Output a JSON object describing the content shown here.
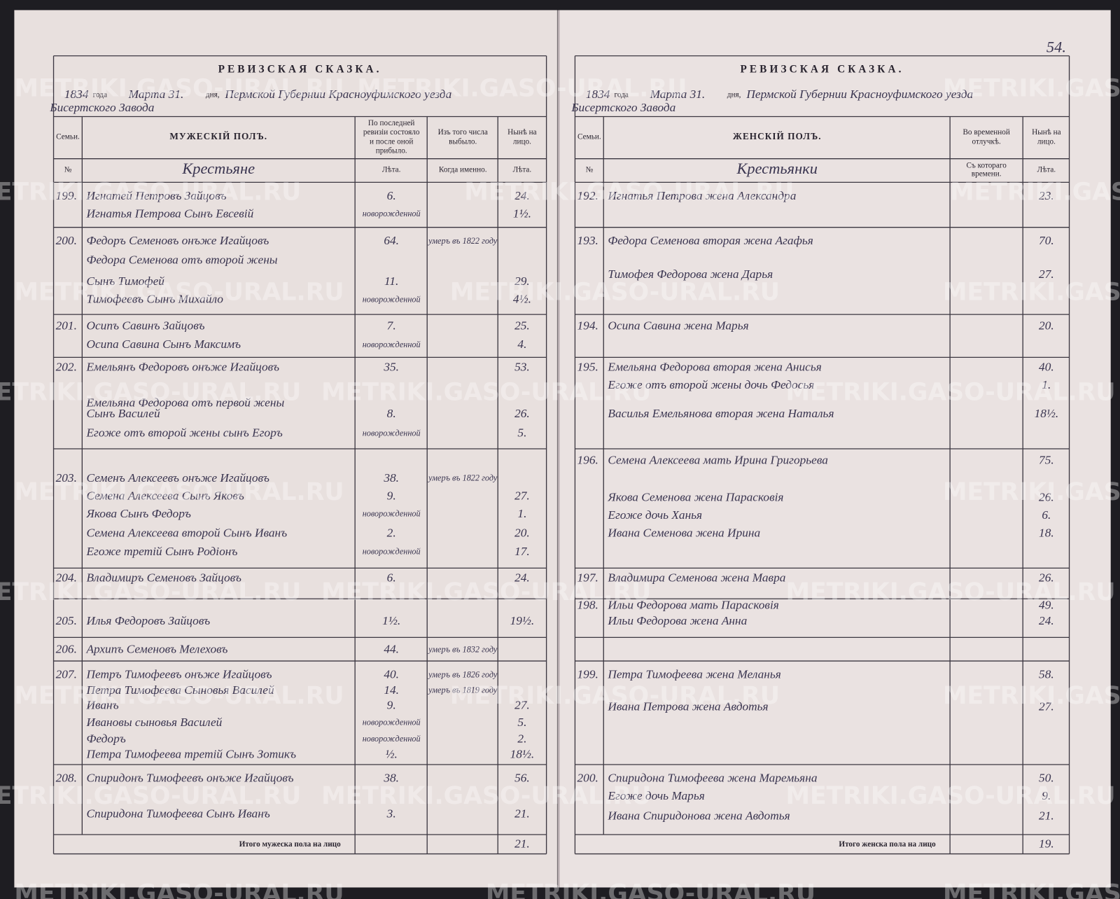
{
  "watermark": "METRIKI.GASO-URAL.RU",
  "page_number": "54.",
  "left_page": {
    "title": "РЕВИЗСКАЯ СКАЗКА.",
    "date_line": [
      "1834",
      "года",
      "Марта 31.",
      "дня,",
      "Пермской Губернии Красноуфимского уезда"
    ],
    "place": "Бисертского Завода",
    "columns": [
      [
        "Семьи."
      ],
      [
        "МУЖЕСКІЙ ПОЛЪ."
      ],
      [
        "По последней",
        "ревизіи состояло",
        "и после оной",
        "прибыло."
      ],
      [
        "Изъ того числа",
        "выбыло."
      ],
      [
        "Нынѣ на",
        "лицо."
      ]
    ],
    "subheader": [
      [
        "№"
      ],
      [
        "Крестьяне"
      ],
      [
        "Лѣта."
      ],
      [
        "Когда именно."
      ],
      [
        "Лѣта."
      ]
    ],
    "families": [
      {
        "no": "199.",
        "lines": [
          {
            "name": "Игнатей Петровъ Зайцовъ",
            "age": "6.",
            "now": "24."
          },
          {
            "name": "Игнатья Петрова Сынъ Евсевій",
            "age": "новорожденной",
            "now": "1½."
          }
        ]
      },
      {
        "no": "200.",
        "lines": [
          {
            "name": "Федоръ Семеновъ онъже Игайцовъ",
            "age": "64.",
            "when": "умеръ въ 1822 году"
          },
          {
            "name": "Федора Семенова отъ второй жены"
          },
          {
            "name": "Сынъ Тимофей",
            "age": "11.",
            "now": "29."
          },
          {
            "name": "Тимофеевъ Сынъ Михайло",
            "age": "новорожденной",
            "now": "4½."
          }
        ]
      },
      {
        "no": "201.",
        "lines": [
          {
            "name": "Осипъ Савинъ Зайцовъ",
            "age": "7.",
            "now": "25."
          },
          {
            "name": "Осипа Савина Сынъ Максимъ",
            "age": "новорожденной",
            "now": "4."
          }
        ]
      },
      {
        "no": "202.",
        "lines": [
          {
            "name": "Емельянъ Федоровъ онъже Игайцовъ",
            "age": "35.",
            "now": "53."
          },
          {
            "name": "Емельяна Федорова отъ первой жены"
          },
          {
            "name": "Сынъ Василей",
            "age": "8.",
            "now": "26."
          },
          {
            "name": "Егоже отъ второй жены сынъ Егоръ",
            "age": "новорожденной",
            "now": "5."
          }
        ]
      },
      {
        "no": "203.",
        "lines": [
          {
            "name": "Семенъ Алексеевъ онъже Игайцовъ",
            "age": "38.",
            "when": "умеръ въ 1822 году"
          },
          {
            "name": "Семена Алексеева Сынъ Яковъ",
            "age": "9.",
            "now": "27."
          },
          {
            "name": "Якова Сынъ Федоръ",
            "age": "новорожденной",
            "now": "1."
          },
          {
            "name": "Семена Алексеева второй Сынъ Иванъ",
            "age": "2.",
            "now": "20."
          },
          {
            "name": "Егоже третій Сынъ Родіонъ",
            "age": "новорожденной",
            "now": "17."
          }
        ]
      },
      {
        "no": "204.",
        "lines": [
          {
            "name": "Владимиръ Семеновъ Зайцовъ",
            "age": "6.",
            "now": "24."
          }
        ]
      },
      {
        "no": "205.",
        "lines": [
          {
            "name": "Илья Федоровъ Зайцовъ",
            "age": "1½.",
            "now": "19½."
          }
        ]
      },
      {
        "no": "206.",
        "lines": [
          {
            "name": "Архипъ Семеновъ Мелеховъ",
            "age": "44.",
            "when": "умеръ въ 1832 году"
          }
        ]
      },
      {
        "no": "207.",
        "lines": [
          {
            "name": "Петръ Тимофеевъ онъже Игайцовъ",
            "age": "40.",
            "when": "умеръ въ 1826 году"
          },
          {
            "name": "Петра Тимофеева Сыновья Василей",
            "age": "14.",
            "when": "умеръ въ 1819 году"
          },
          {
            "name": "Иванъ",
            "age": "9.",
            "now": "27."
          },
          {
            "name": "Ивановы сыновья Василей",
            "age": "новорожденной",
            "now": "5."
          },
          {
            "name": "Федоръ",
            "age": "новорожденной",
            "now": "2."
          },
          {
            "name": "Петра Тимофеева третій Сынъ Зотикъ",
            "age": "½.",
            "now": "18½."
          }
        ]
      },
      {
        "no": "208.",
        "lines": [
          {
            "name": "Спиридонъ Тимофеевъ онъже Игайцовъ",
            "age": "38.",
            "now": "56."
          },
          {
            "name": "Спиридона Тимофеева Сынъ Иванъ",
            "age": "3.",
            "now": "21."
          }
        ]
      }
    ],
    "total_label": "Итого мужеска пола на лицо",
    "total": "21."
  },
  "right_page": {
    "title": "РЕВИЗСКАЯ СКАЗКА.",
    "date_line": [
      "1834",
      "года",
      "Марта 31.",
      "дня,",
      "Пермской Губернии Красноуфимского уезда"
    ],
    "place": "Бисертского Завода",
    "columns": [
      [
        "Семьи."
      ],
      [
        "ЖЕНСКІЙ ПОЛЪ."
      ],
      [
        "Во временной",
        "отлучкѣ."
      ],
      [
        "Нынѣ на",
        "лицо."
      ]
    ],
    "subheader": [
      [
        "№"
      ],
      [
        "Крестьянки"
      ],
      [
        "Съ котораго",
        "времени."
      ],
      [
        "Лѣта."
      ]
    ],
    "families": [
      {
        "no": "192.",
        "lines": [
          {
            "name": "Игнатья Петрова жена Александра",
            "now": "23."
          }
        ]
      },
      {
        "no": "193.",
        "lines": [
          {
            "name": "Федора Семенова вторая жена Агафья",
            "now": "70."
          },
          {
            "name": "Тимофея Федорова жена Дарья",
            "now": "27."
          }
        ]
      },
      {
        "no": "194.",
        "lines": [
          {
            "name": "Осипа Савина жена Марья",
            "now": "20."
          }
        ]
      },
      {
        "no": "195.",
        "lines": [
          {
            "name": "Емельяна Федорова вторая жена Анисья",
            "now": "40."
          },
          {
            "name": "Егоже отъ второй жены дочь Федосья",
            "now": "1."
          },
          {
            "name": "Василья Емельянова вторая жена Наталья",
            "now": "18½."
          }
        ]
      },
      {
        "no": "196.",
        "lines": [
          {
            "name": "Семена Алексеева мать Ирина Григорьева",
            "now": "75."
          },
          {
            "name": "Якова Семенова жена Парасковія",
            "now": "26."
          },
          {
            "name": "Егоже дочь Ханья",
            "now": "6."
          },
          {
            "name": "Ивана Семенова жена Ирина",
            "now": "18."
          }
        ]
      },
      {
        "no": "197.",
        "lines": [
          {
            "name": "Владимира Семенова жена Мавра",
            "now": "26."
          }
        ]
      },
      {
        "no": "198.",
        "lines": [
          {
            "name": "Ильи Федорова мать Парасковія",
            "now": "49."
          },
          {
            "name": "Ильи Федорова жена Анна",
            "now": "24."
          }
        ]
      },
      {
        "no": "199.",
        "lines": [
          {
            "name": "Петра Тимофеева жена Меланья",
            "now": "58."
          },
          {
            "name": "Ивана Петрова жена Авдотья",
            "now": "27."
          }
        ]
      },
      {
        "no": "200.",
        "lines": [
          {
            "name": "Спиридона Тимофеева жена Маремьяна",
            "now": "50."
          },
          {
            "name": "Егоже дочь Марья",
            "now": "9."
          },
          {
            "name": "Ивана Спиридонова жена Авдотья",
            "now": "21."
          }
        ]
      }
    ],
    "total_label": "Итого женска пола на лицо",
    "total": "19."
  }
}
